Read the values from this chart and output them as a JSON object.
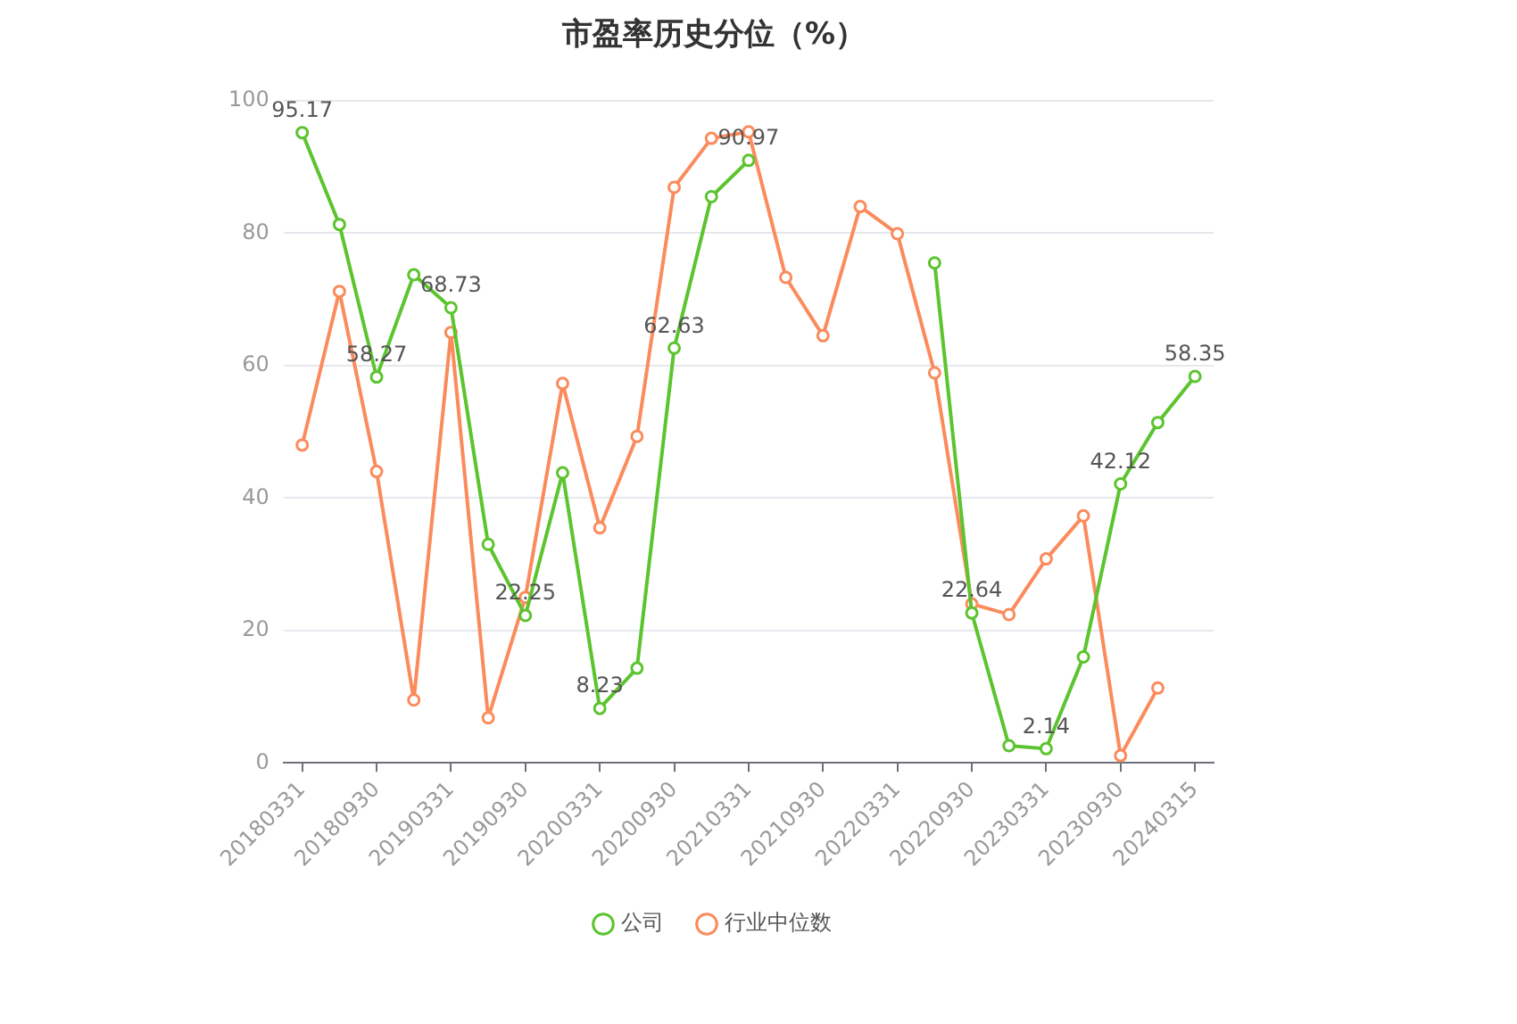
{
  "chart_data": {
    "type": "line",
    "title": "市盈率历史分位（%）",
    "categories": [
      "20180331",
      null,
      "20180930",
      null,
      "20190331",
      null,
      "20190930",
      null,
      "20200331",
      null,
      "20200930",
      null,
      "20210331",
      null,
      "20210930",
      null,
      "20220331",
      null,
      "20220930",
      null,
      "20230331",
      null,
      "20230930",
      null,
      "20240315"
    ],
    "series": [
      {
        "name": "公司",
        "color": "#5cc42f",
        "values": [
          95.17,
          81.3,
          58.27,
          73.7,
          68.73,
          33,
          22.25,
          43.8,
          8.23,
          14.3,
          62.63,
          85.5,
          90.97,
          null,
          null,
          null,
          null,
          75.5,
          22.64,
          2.6,
          2.14,
          16,
          42.12,
          51.4,
          58.35
        ],
        "value_labels": [
          "95.17",
          null,
          "58.27",
          null,
          "68.73",
          null,
          "22.25",
          null,
          "8.23",
          null,
          "62.63",
          null,
          "90.97",
          null,
          null,
          null,
          null,
          null,
          "22.64",
          null,
          "2.14",
          null,
          "42.12",
          null,
          "58.35"
        ]
      },
      {
        "name": "行业中位数",
        "color": "#fb8b5c",
        "values": [
          48,
          71.2,
          44,
          9.5,
          65,
          6.8,
          25,
          57.3,
          35.5,
          49.3,
          86.9,
          94.3,
          95.3,
          73.3,
          64.5,
          84,
          79.9,
          58.9,
          24,
          22.4,
          30.8,
          37.3,
          1.1,
          11.3,
          null
        ]
      }
    ],
    "ylim": [
      0,
      100
    ],
    "yticks": [
      0,
      20,
      40,
      60,
      80,
      100
    ],
    "grid": "y",
    "legend": "bottom",
    "marker": "circle",
    "line_style": "solid"
  }
}
